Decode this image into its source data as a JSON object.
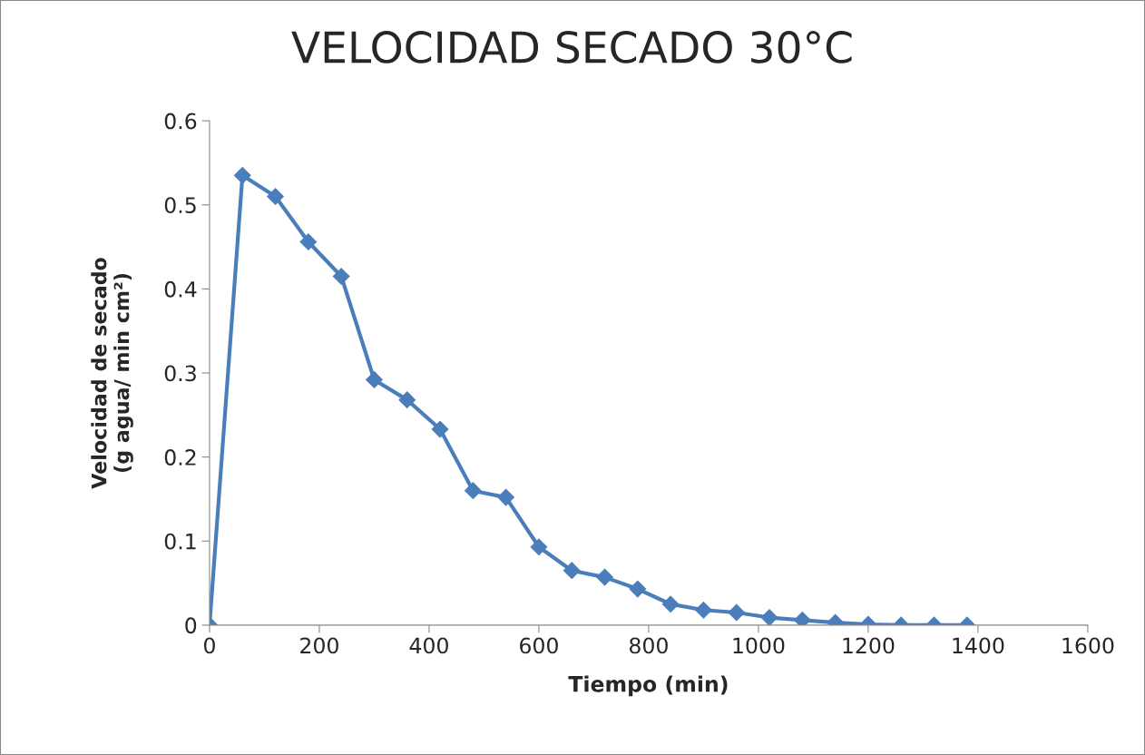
{
  "chart_data": {
    "type": "line",
    "title": "VELOCIDAD SECADO 30°C",
    "xlabel": "Tiempo (min)",
    "ylabel": "Velocidad de secado\n(g agua/ min cm²)",
    "x": [
      0,
      60,
      120,
      180,
      240,
      300,
      360,
      420,
      480,
      540,
      600,
      660,
      720,
      780,
      840,
      900,
      960,
      1020,
      1080,
      1140,
      1200,
      1260,
      1320,
      1380
    ],
    "series": [
      {
        "color": "#4a7ebb",
        "values": [
          0,
          0.535,
          0.51,
          0.456,
          0.415,
          0.292,
          0.268,
          0.233,
          0.16,
          0.152,
          0.093,
          0.065,
          0.057,
          0.043,
          0.025,
          0.018,
          0.015,
          0.009,
          0.006,
          0.003,
          0.001,
          0,
          0,
          0
        ]
      }
    ],
    "xlim": [
      0,
      1600
    ],
    "xticks": [
      0,
      200,
      400,
      600,
      800,
      1000,
      1200,
      1400,
      1600
    ],
    "ylim": [
      0,
      0.6
    ],
    "yticks": [
      0,
      0.1,
      0.2,
      0.3,
      0.4,
      0.5,
      0.6
    ],
    "marker": "diamond",
    "line_style": "solid"
  }
}
